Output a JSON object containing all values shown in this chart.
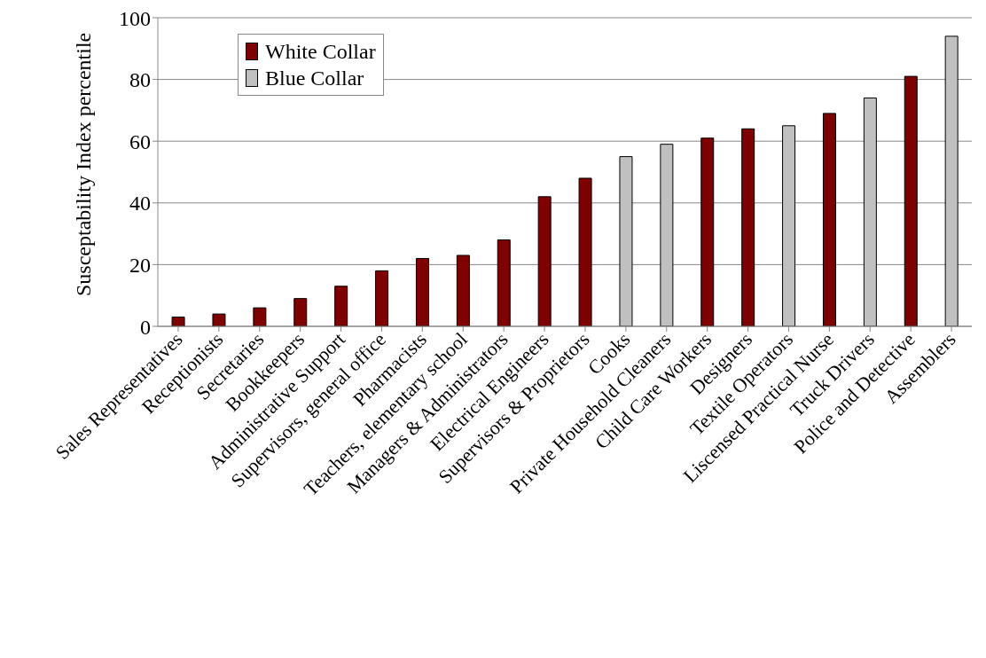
{
  "chart_data": {
    "type": "bar",
    "ylabel": "Susceptability Index percentile",
    "categories": [
      "Sales Representatives",
      "Receptionists",
      "Secretaries",
      "Bookkeepers",
      "Administrative Support",
      "Supervisors, general office",
      "Pharmacists",
      "Teachers, elementary school",
      "Managers & Administrators",
      "Electrical Engineers",
      "Supervisors & Proprietors",
      "Cooks",
      "Private Household Cleaners",
      "Child Care Workers",
      "Designers",
      "Textile Operators",
      "Liscensed Practical Nurse",
      "Truck Drivers",
      "Police and Detective",
      "Assemblers"
    ],
    "series": [
      {
        "name": "White Collar",
        "color": "#7f0000",
        "values": [
          3,
          4,
          6,
          9,
          13,
          18,
          22,
          23,
          28,
          42,
          48,
          null,
          null,
          61,
          64,
          null,
          69,
          null,
          81,
          null
        ]
      },
      {
        "name": "Blue Collar",
        "color": "#c0c0c0",
        "values": [
          null,
          null,
          null,
          null,
          null,
          null,
          null,
          null,
          null,
          null,
          null,
          55,
          59,
          null,
          null,
          65,
          null,
          74,
          null,
          94
        ]
      }
    ],
    "ylim": [
      0,
      100
    ],
    "yticks": [
      0,
      20,
      40,
      60,
      80,
      100
    ],
    "grid": "y",
    "legend": "top left"
  }
}
